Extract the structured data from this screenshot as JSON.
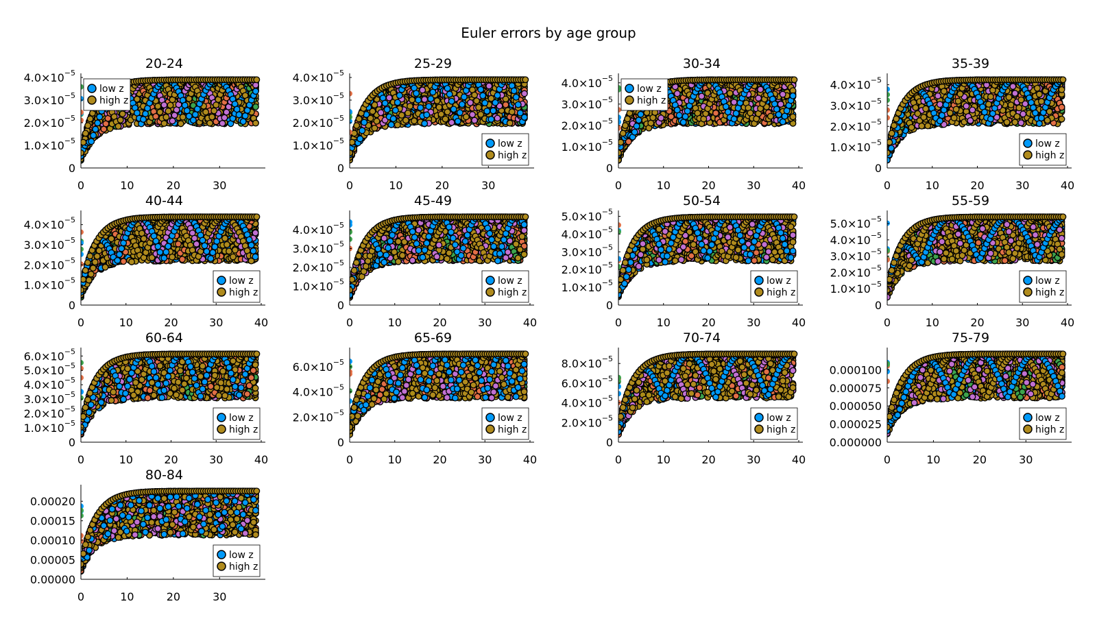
{
  "title": "Euler errors by age group",
  "legend_labels": [
    "low z",
    "high z"
  ],
  "colors": {
    "low_z": "#009AF9",
    "high_z": "#B08B1D",
    "series_1": "#009AF9",
    "series_2": "#E26F46",
    "series_3": "#3DA44D",
    "series_4": "#C271D2",
    "series_5": "#AC8D18",
    "marker_outline": "#000000"
  },
  "chart_data": [
    {
      "type": "scatter",
      "title": "20-24",
      "xlim": [
        0,
        39
      ],
      "ylim": [
        0,
        4e-05
      ],
      "xticks": [
        "0",
        "10",
        "20",
        "30"
      ],
      "yticks": [
        {
          "v": 0,
          "m": "0"
        },
        {
          "v": 1e-05,
          "m": "1.0×10",
          "e": "−5"
        },
        {
          "v": 2e-05,
          "m": "2.0×10",
          "e": "−5"
        },
        {
          "v": 3e-05,
          "m": "3.0×10",
          "e": "−5"
        },
        {
          "v": 4e-05,
          "m": "4.0×10",
          "e": "−5"
        }
      ],
      "legend": "top-left",
      "xmax": 38
    },
    {
      "type": "scatter",
      "title": "25-29",
      "xlim": [
        0,
        39
      ],
      "ylim": [
        0,
        4e-05
      ],
      "xticks": [
        "0",
        "10",
        "20",
        "30"
      ],
      "yticks": [
        {
          "v": 0,
          "m": "0"
        },
        {
          "v": 1e-05,
          "m": "1.0×10",
          "e": "−5"
        },
        {
          "v": 2e-05,
          "m": "2.0×10",
          "e": "−5"
        },
        {
          "v": 3e-05,
          "m": "3.0×10",
          "e": "−5"
        },
        {
          "v": 4e-05,
          "m": "4.0×10",
          "e": "−5"
        }
      ],
      "legend": "bottom-right",
      "xmax": 38
    },
    {
      "type": "scatter",
      "title": "30-34",
      "xlim": [
        0,
        40
      ],
      "ylim": [
        0,
        4.25e-05
      ],
      "xticks": [
        "0",
        "10",
        "20",
        "30",
        "40"
      ],
      "yticks": [
        {
          "v": 0,
          "m": "0"
        },
        {
          "v": 1e-05,
          "m": "1.0×10",
          "e": "−5"
        },
        {
          "v": 2e-05,
          "m": "2.0×10",
          "e": "−5"
        },
        {
          "v": 3e-05,
          "m": "3.0×10",
          "e": "−5"
        },
        {
          "v": 4e-05,
          "m": "4.0×10",
          "e": "−5"
        }
      ],
      "legend": "top-left",
      "xmax": 39
    },
    {
      "type": "scatter",
      "title": "35-39",
      "xlim": [
        0,
        40
      ],
      "ylim": [
        0,
        4.35e-05
      ],
      "xticks": [
        "0",
        "10",
        "20",
        "30",
        "40"
      ],
      "yticks": [
        {
          "v": 0,
          "m": "0"
        },
        {
          "v": 1e-05,
          "m": "1.0×10",
          "e": "−5"
        },
        {
          "v": 2e-05,
          "m": "2.0×10",
          "e": "−5"
        },
        {
          "v": 3e-05,
          "m": "3.0×10",
          "e": "−5"
        },
        {
          "v": 4e-05,
          "m": "4.0×10",
          "e": "−5"
        }
      ],
      "legend": "bottom-right",
      "xmax": 39
    },
    {
      "type": "scatter",
      "title": "40-44",
      "xlim": [
        0,
        40
      ],
      "ylim": [
        0,
        4.5e-05
      ],
      "xticks": [
        "0",
        "10",
        "20",
        "30",
        "40"
      ],
      "yticks": [
        {
          "v": 0,
          "m": "0"
        },
        {
          "v": 1e-05,
          "m": "1.0×10",
          "e": "−5"
        },
        {
          "v": 2e-05,
          "m": "2.0×10",
          "e": "−5"
        },
        {
          "v": 3e-05,
          "m": "3.0×10",
          "e": "−5"
        },
        {
          "v": 4e-05,
          "m": "4.0×10",
          "e": "−5"
        }
      ],
      "legend": "bottom-right",
      "xmax": 39
    },
    {
      "type": "scatter",
      "title": "45-49",
      "xlim": [
        0,
        40
      ],
      "ylim": [
        0,
        4.8e-05
      ],
      "xticks": [
        "0",
        "10",
        "20",
        "30",
        "40"
      ],
      "yticks": [
        {
          "v": 0,
          "m": "0"
        },
        {
          "v": 1e-05,
          "m": "1.0×10",
          "e": "−5"
        },
        {
          "v": 2e-05,
          "m": "2.0×10",
          "e": "−5"
        },
        {
          "v": 3e-05,
          "m": "3.0×10",
          "e": "−5"
        },
        {
          "v": 4e-05,
          "m": "4.0×10",
          "e": "−5"
        }
      ],
      "legend": "bottom-right",
      "xmax": 39
    },
    {
      "type": "scatter",
      "title": "50-54",
      "xlim": [
        0,
        40
      ],
      "ylim": [
        0,
        5.1e-05
      ],
      "xticks": [
        "0",
        "10",
        "20",
        "30",
        "40"
      ],
      "yticks": [
        {
          "v": 0,
          "m": "0"
        },
        {
          "v": 1e-05,
          "m": "1.0×10",
          "e": "−5"
        },
        {
          "v": 2e-05,
          "m": "2.0×10",
          "e": "−5"
        },
        {
          "v": 3e-05,
          "m": "3.0×10",
          "e": "−5"
        },
        {
          "v": 4e-05,
          "m": "4.0×10",
          "e": "−5"
        },
        {
          "v": 5e-05,
          "m": "5.0×10",
          "e": "−5"
        }
      ],
      "legend": "bottom-right",
      "xmax": 39
    },
    {
      "type": "scatter",
      "title": "55-59",
      "xlim": [
        0,
        40
      ],
      "ylim": [
        0,
        5.55e-05
      ],
      "xticks": [
        "0",
        "10",
        "20",
        "30",
        "40"
      ],
      "yticks": [
        {
          "v": 0,
          "m": "0"
        },
        {
          "v": 1e-05,
          "m": "1.0×10",
          "e": "−5"
        },
        {
          "v": 2e-05,
          "m": "2.0×10",
          "e": "−5"
        },
        {
          "v": 3e-05,
          "m": "3.0×10",
          "e": "−5"
        },
        {
          "v": 4e-05,
          "m": "4.0×10",
          "e": "−5"
        },
        {
          "v": 5e-05,
          "m": "5.0×10",
          "e": "−5"
        }
      ],
      "legend": "bottom-right",
      "xmax": 39
    },
    {
      "type": "scatter",
      "title": "60-64",
      "xlim": [
        0,
        40
      ],
      "ylim": [
        0,
        6.3e-05
      ],
      "xticks": [
        "0",
        "10",
        "20",
        "30",
        "40"
      ],
      "yticks": [
        {
          "v": 0,
          "m": "0"
        },
        {
          "v": 1e-05,
          "m": "1.0×10",
          "e": "−5"
        },
        {
          "v": 2e-05,
          "m": "2.0×10",
          "e": "−5"
        },
        {
          "v": 3e-05,
          "m": "3.0×10",
          "e": "−5"
        },
        {
          "v": 4e-05,
          "m": "4.0×10",
          "e": "−5"
        },
        {
          "v": 5e-05,
          "m": "5.0×10",
          "e": "−5"
        },
        {
          "v": 6e-05,
          "m": "6.0×10",
          "e": "−5"
        }
      ],
      "legend": "bottom-right",
      "xmax": 39
    },
    {
      "type": "scatter",
      "title": "65-69",
      "xlim": [
        0,
        40
      ],
      "ylim": [
        0,
        7.2e-05
      ],
      "xticks": [
        "0",
        "10",
        "20",
        "30",
        "40"
      ],
      "yticks": [
        {
          "v": 0,
          "m": "0"
        },
        {
          "v": 2e-05,
          "m": "2.0×10",
          "e": "−5"
        },
        {
          "v": 4e-05,
          "m": "4.0×10",
          "e": "−5"
        },
        {
          "v": 6e-05,
          "m": "6.0×10",
          "e": "−5"
        }
      ],
      "legend": "bottom-right",
      "xmax": 39
    },
    {
      "type": "scatter",
      "title": "70-74",
      "xlim": [
        0,
        40
      ],
      "ylim": [
        0,
        9.2e-05
      ],
      "xticks": [
        "0",
        "10",
        "20",
        "30",
        "40"
      ],
      "yticks": [
        {
          "v": 0,
          "m": "0"
        },
        {
          "v": 2e-05,
          "m": "2.0×10",
          "e": "−5"
        },
        {
          "v": 4e-05,
          "m": "4.0×10",
          "e": "−5"
        },
        {
          "v": 6e-05,
          "m": "6.0×10",
          "e": "−5"
        },
        {
          "v": 8e-05,
          "m": "8.0×10",
          "e": "−5"
        }
      ],
      "legend": "bottom-right",
      "xmax": 39
    },
    {
      "type": "scatter",
      "title": "75-79",
      "xlim": [
        0,
        39
      ],
      "ylim": [
        0,
        0.000125
      ],
      "xticks": [
        "0",
        "10",
        "20",
        "30"
      ],
      "yticks": [
        {
          "v": 0,
          "m": "0.000000"
        },
        {
          "v": 2.5e-05,
          "m": "0.000025"
        },
        {
          "v": 5e-05,
          "m": "0.000050"
        },
        {
          "v": 7.5e-05,
          "m": "0.000075"
        },
        {
          "v": 0.0001,
          "m": "0.000100"
        }
      ],
      "legend": "bottom-right",
      "xmax": 38
    },
    {
      "type": "scatter",
      "title": "80-84",
      "xlim": [
        0,
        39
      ],
      "ylim": [
        0,
        0.000232
      ],
      "xticks": [
        "0",
        "10",
        "20",
        "30"
      ],
      "yticks": [
        {
          "v": 0,
          "m": "0.00000"
        },
        {
          "v": 5e-05,
          "m": "0.00005"
        },
        {
          "v": 0.0001,
          "m": "0.00010"
        },
        {
          "v": 0.00015,
          "m": "0.00015"
        },
        {
          "v": 0.0002,
          "m": "0.00020"
        }
      ],
      "legend": "bottom-right",
      "xmax": 38
    }
  ]
}
